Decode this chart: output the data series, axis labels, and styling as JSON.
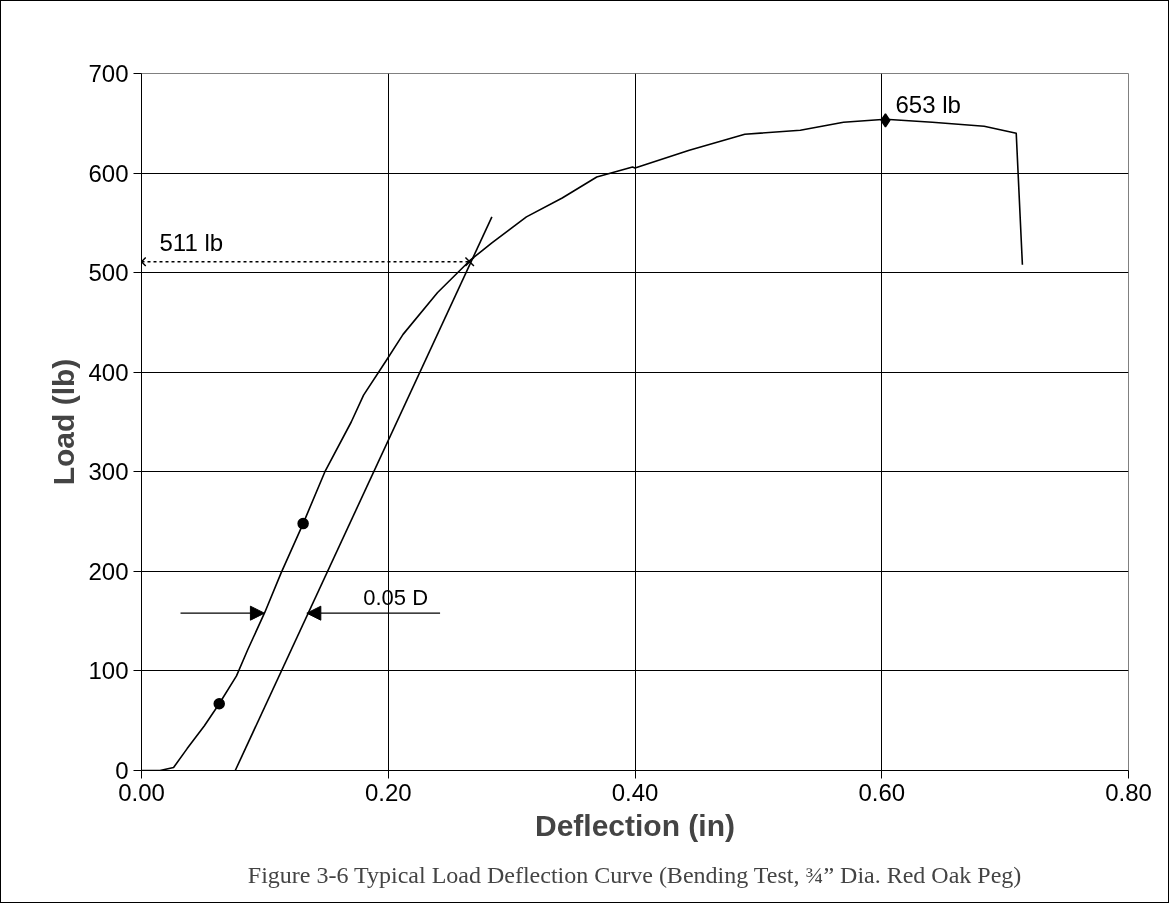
{
  "chart_data": {
    "type": "line",
    "xlabel": "Deflection (in)",
    "ylabel": "Load (lb)",
    "xlim": [
      0,
      0.8
    ],
    "ylim": [
      0,
      700
    ],
    "xticks": [
      {
        "value": 0,
        "label": "0.00"
      },
      {
        "value": 0.2,
        "label": "0.20"
      },
      {
        "value": 0.4,
        "label": "0.40"
      },
      {
        "value": 0.6,
        "label": "0.60"
      },
      {
        "value": 0.8,
        "label": "0.80"
      }
    ],
    "yticks": [
      0,
      100,
      200,
      300,
      400,
      500,
      600,
      700
    ],
    "grid": true,
    "series": [
      {
        "color": "#000000",
        "line_style": "solid",
        "marker": "none",
        "x": [
          0,
          0.015,
          0.026,
          0.037,
          0.051,
          0.063,
          0.077,
          0.086,
          0.1,
          0.113,
          0.131,
          0.149,
          0.17,
          0.18,
          0.198,
          0.212,
          0.24,
          0.266,
          0.284,
          0.312,
          0.341,
          0.369,
          0.398,
          0.4,
          0.444,
          0.489,
          0.534,
          0.569,
          0.603,
          0.641,
          0.683,
          0.709,
          0.714
        ],
        "values": [
          0,
          0,
          3,
          22,
          45,
          67,
          95,
          121,
          159,
          198,
          248,
          301,
          350,
          377,
          411,
          438,
          480,
          512,
          530,
          556,
          575,
          596,
          606,
          605,
          623,
          639,
          643,
          651,
          654,
          651,
          647,
          640,
          508
        ]
      },
      {
        "color": "#000000",
        "line_style": "solid",
        "marker": "none",
        "x": [
          0.076,
          0.284
        ],
        "values": [
          0,
          556
        ]
      },
      {
        "color": "#000000",
        "line_style": "dotted",
        "marker": "cross",
        "x": [
          0,
          0.266
        ],
        "values": [
          511,
          511
        ]
      },
      {
        "type": "scatter",
        "color": "#000000",
        "marker": "circle",
        "x": [
          0.063,
          0.131
        ],
        "values": [
          67,
          248
        ]
      },
      {
        "type": "scatter",
        "color": "#000000",
        "marker": "diamond",
        "x": [
          0.603
        ],
        "values": [
          653
        ]
      }
    ],
    "annotations": [
      {
        "text": "511 lb",
        "x": 0,
        "y": 511
      },
      {
        "text": "653 lb",
        "x": 0.603,
        "y": 653
      },
      {
        "text": "0.05 D",
        "x": 0.134,
        "y": 158
      },
      "Figure 3-6 Typical Load Deflection Curve (Bending Test, ¾” Dia. Red Oak Peg)"
    ]
  }
}
